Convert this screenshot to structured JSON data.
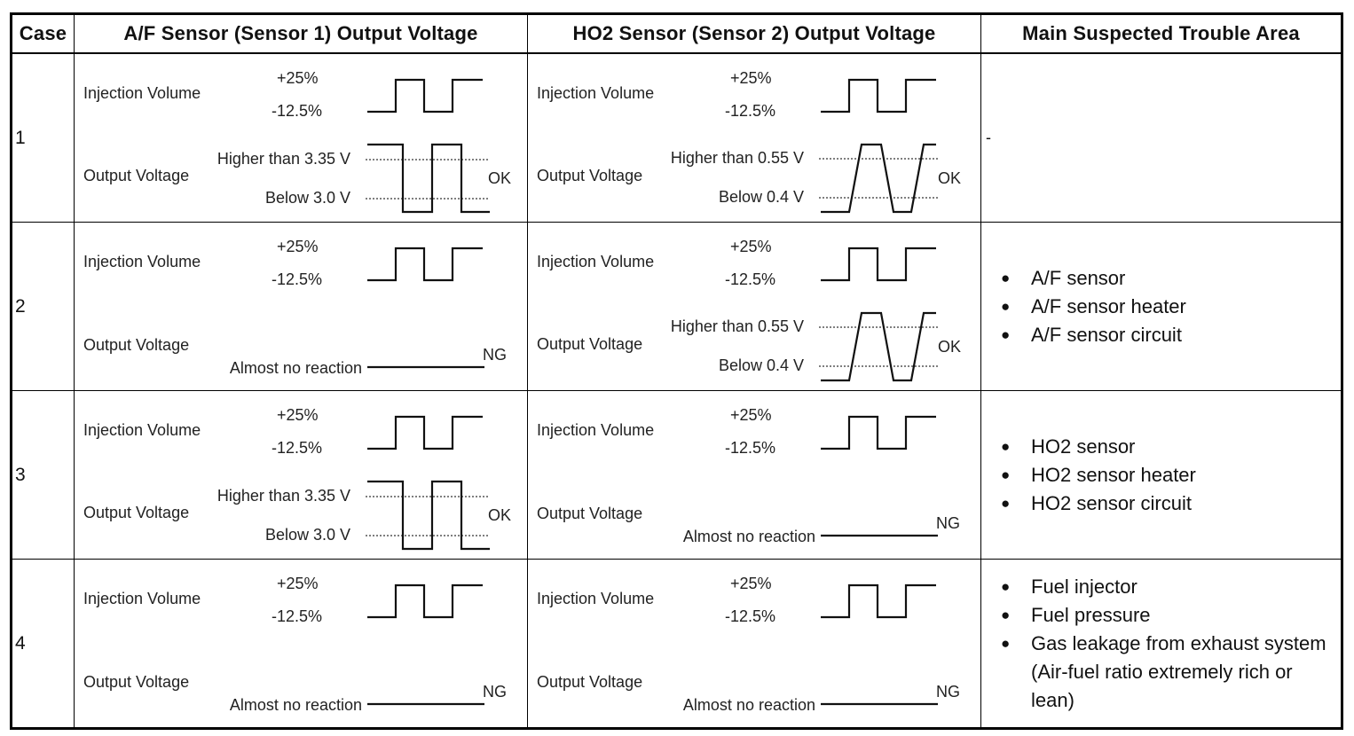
{
  "headers": [
    "Case",
    "A/F Sensor (Sensor 1) Output Voltage",
    "HO2 Sensor (Sensor 2) Output Voltage",
    "Main Suspected Trouble Area"
  ],
  "labels": {
    "injection_volume": "Injection Volume",
    "plus25": "+25%",
    "minus12": "-12.5%",
    "output_voltage": "Output Voltage",
    "af_higher": "Higher than 3.35 V",
    "af_below": "Below 3.0 V",
    "ho2_higher": "Higher than 0.55 V",
    "ho2_below": "Below 0.4 V",
    "no_reaction": "Almost no reaction",
    "ok": "OK",
    "ng": "NG"
  },
  "rows": [
    {
      "case": "1",
      "af_result": "OK",
      "ho2_result": "OK",
      "trouble": [],
      "trouble_text": "-"
    },
    {
      "case": "2",
      "af_result": "NG",
      "ho2_result": "OK",
      "trouble": [
        "A/F sensor",
        "A/F sensor heater",
        "A/F sensor circuit"
      ],
      "trouble_text": ""
    },
    {
      "case": "3",
      "af_result": "OK",
      "ho2_result": "NG",
      "trouble": [
        "HO2 sensor",
        "HO2 sensor heater",
        "HO2 sensor circuit"
      ],
      "trouble_text": ""
    },
    {
      "case": "4",
      "af_result": "NG",
      "ho2_result": "NG",
      "trouble": [
        "Fuel injector",
        "Fuel pressure",
        "Gas leakage from exhaust system (Air-fuel ratio extremely rich or lean)"
      ],
      "trouble_text": ""
    }
  ]
}
